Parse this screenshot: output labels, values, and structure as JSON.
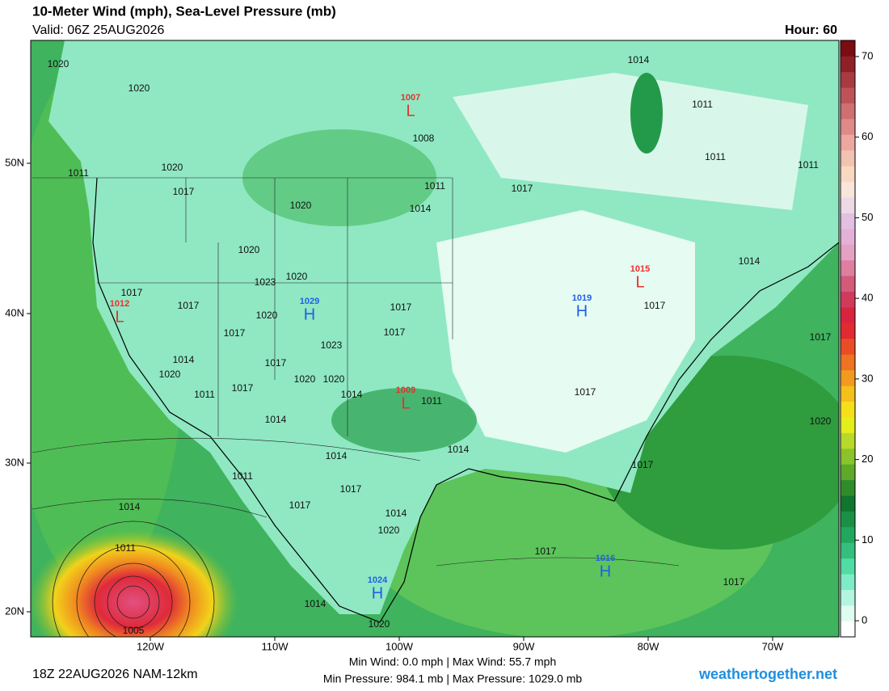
{
  "header": {
    "title": "10-Meter Wind (mph), Sea-Level Pressure (mb)",
    "valid": "Valid: 06Z 25AUG2026",
    "hour": "Hour: 60"
  },
  "map": {
    "lat_labels": [
      "50N",
      "40N",
      "30N",
      "20N"
    ],
    "lon_labels": [
      "120W",
      "110W",
      "100W",
      "90W",
      "80W",
      "70W"
    ],
    "isobar_labels": [
      1020,
      1020,
      1020,
      1017,
      1011,
      1020,
      1020,
      1023,
      1020,
      1017,
      1017,
      1020,
      1017,
      1023,
      1014,
      1020,
      1017,
      1020,
      1020,
      1011,
      1017,
      1014,
      1014,
      1011,
      1017,
      1017,
      1011,
      1014,
      1017,
      1008,
      1014,
      1011,
      1011,
      1011,
      1014,
      1017,
      1017,
      1017,
      1020,
      1017,
      1014,
      1014,
      1011,
      1017,
      1017,
      1014,
      1020,
      1017,
      1017,
      1014,
      1011,
      1014,
      1020,
      1005
    ],
    "centers": [
      {
        "type": "L",
        "pressure": 1007
      },
      {
        "type": "L",
        "pressure": 1012
      },
      {
        "type": "H",
        "pressure": 1029
      },
      {
        "type": "H",
        "pressure": 1019
      },
      {
        "type": "L",
        "pressure": 1015
      },
      {
        "type": "L",
        "pressure": 1009
      },
      {
        "type": "H",
        "pressure": 1016
      },
      {
        "type": "H",
        "pressure": 1024
      }
    ]
  },
  "colorbar": {
    "range": [
      -2,
      72
    ],
    "ticks": [
      0,
      10,
      20,
      30,
      40,
      50,
      60,
      70
    ],
    "colors": [
      "#ffffff",
      "#e0fbf0",
      "#b4f5e0",
      "#7eecc8",
      "#50dca5",
      "#34c07c",
      "#22a85e",
      "#1a8f45",
      "#10752f",
      "#2f8c2b",
      "#5ea82a",
      "#8bc32a",
      "#b8d92a",
      "#e3ee1a",
      "#f6df1a",
      "#f4c01a",
      "#f29a1f",
      "#ee7322",
      "#ea4d26",
      "#e12a32",
      "#d8243f",
      "#cf3b5a",
      "#d45a7a",
      "#de7fa0",
      "#e5a1c4",
      "#e4b0d8",
      "#e2c0e2",
      "#efd8e6",
      "#f8e6da",
      "#f8d8c0",
      "#f3c2b0",
      "#eca8a0",
      "#e08a88",
      "#d06f70",
      "#bd5359",
      "#a83a42",
      "#8f2028",
      "#7a0c12"
    ]
  },
  "footer": {
    "run": "18Z 22AUG2026 NAM-12km",
    "wind_line": "Min Wind:  0.0 mph | Max Wind:  55.7 mph",
    "pressure_line": "Min Pressure: 984.1 mb | Max Pressure: 1029.0 mb",
    "site": "weathertogether.net"
  }
}
